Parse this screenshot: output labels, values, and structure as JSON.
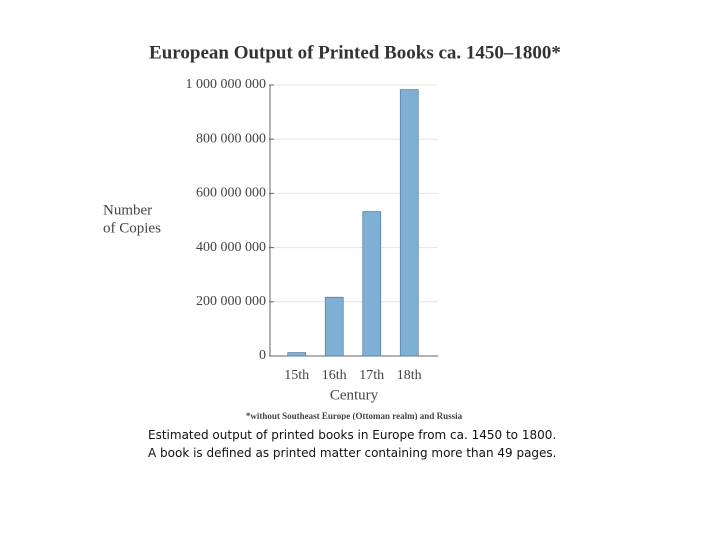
{
  "chart_data": {
    "type": "bar",
    "title": "European Output of Printed Books ca. 1450–1800*",
    "y_label": [
      "Number",
      "of Copies"
    ],
    "x_label": "Century",
    "footnote": "*without Southeast Europe (Ottoman realm) and Russia",
    "categories": [
      "15th",
      "16th",
      "17th",
      "18th"
    ],
    "values": [
      12600000,
      217000000,
      533000000,
      983000000
    ],
    "color": "#7eafd4",
    "ylim": [
      0,
      1000000000
    ],
    "yticks": [
      0,
      {
        "value": 200000000,
        "label": "200 000 000"
      },
      {
        "value": 400000000,
        "label": "400 000 000"
      },
      {
        "value": 600000000,
        "label": "600 000 000"
      },
      {
        "value": 800000000,
        "label": "800 000 000"
      },
      {
        "value": 1000000000,
        "label": "1 000 000 000"
      }
    ],
    "grid": true
  },
  "caption": "Estimated output of printed books in Europe from ca. 1450 to 1800. A book is defined as printed matter containing more than 49 pages."
}
